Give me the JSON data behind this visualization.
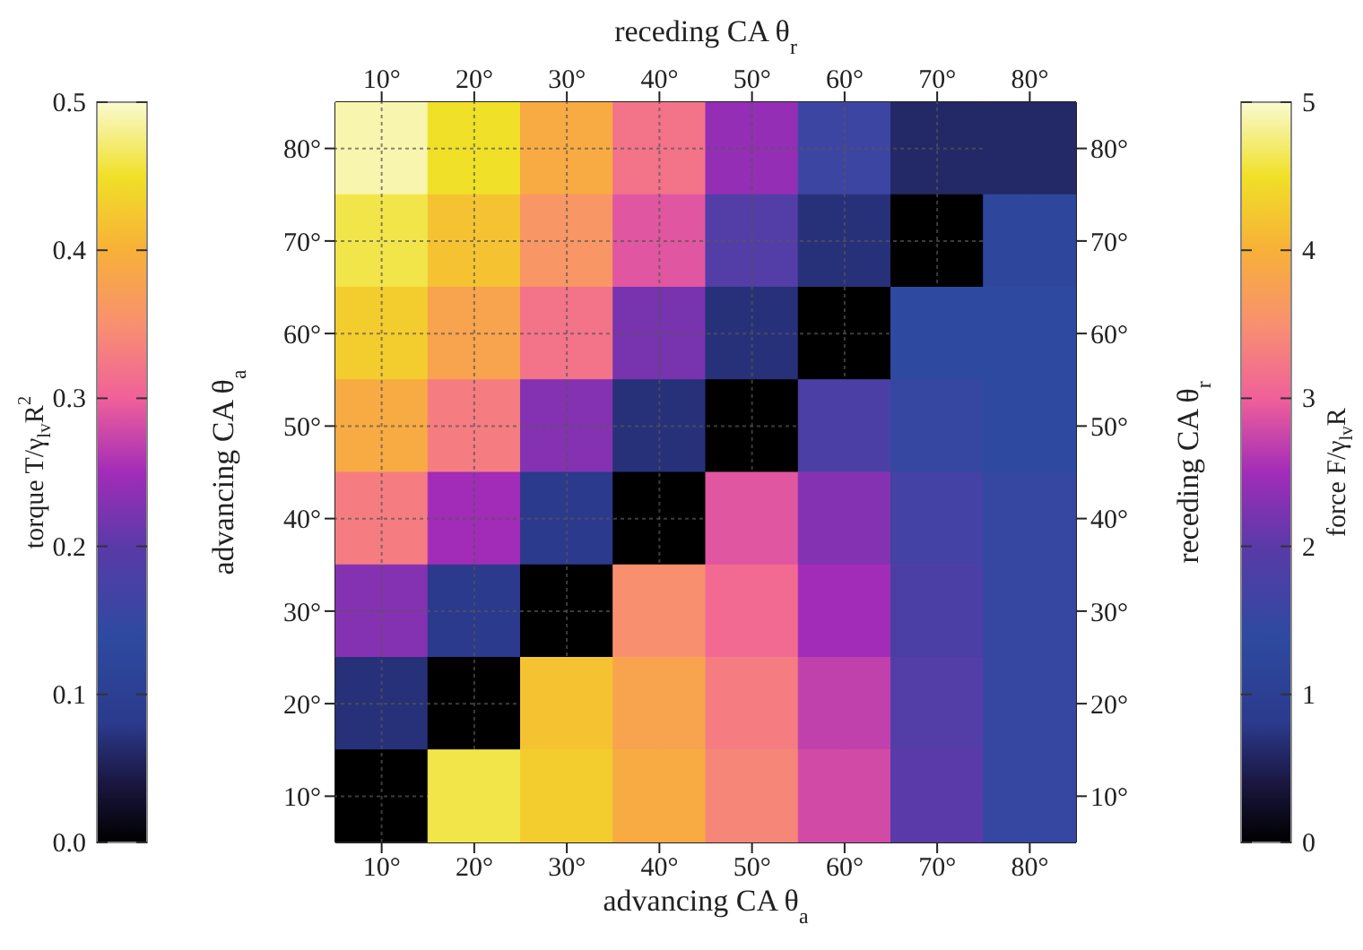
{
  "chart_data": [
    {
      "type": "heatmap",
      "x2label": "receding CA θ$_{r}$",
      "ylabel": "advancing CA θ$_{a}$",
      "clabel": "torque T/γ$_{lv}$R$^{2}$",
      "categories": [
        "10°",
        "20°",
        "30°",
        "40°",
        "50°",
        "60°",
        "70°",
        "80°"
      ],
      "y_categories": [
        "80°",
        "70°",
        "60°",
        "50°",
        "40°",
        "30°",
        "20°",
        "10°"
      ],
      "cells": [
        [
          0.49,
          0.45,
          0.39,
          0.32,
          0.24,
          0.16,
          0.06,
          null
        ],
        [
          0.46,
          0.42,
          0.36,
          0.29,
          0.19,
          0.07,
          0.0,
          null
        ],
        [
          0.43,
          0.38,
          0.32,
          0.22,
          0.07,
          0.0,
          null,
          null
        ],
        [
          0.39,
          0.33,
          0.23,
          0.07,
          0.0,
          null,
          null,
          null
        ],
        [
          0.33,
          0.25,
          0.08,
          0.0,
          null,
          null,
          null,
          null
        ],
        [
          0.23,
          0.08,
          0.0,
          null,
          null,
          null,
          null,
          null
        ],
        [
          0.07,
          0.0,
          null,
          null,
          null,
          null,
          null,
          null
        ],
        [
          0.0,
          null,
          null,
          null,
          null,
          null,
          null,
          null
        ]
      ],
      "clim": [
        0,
        0.5
      ],
      "cticks": [
        {
          "value": 0,
          "label": "0.0"
        },
        0.1,
        0.2,
        0.3,
        0.4,
        0.5
      ],
      "grid": true
    },
    {
      "type": "heatmap",
      "xlabel": "advancing CA θ$_{a}$",
      "y2label": "receding CA θ$_{r}$",
      "clabel": "force F/γ$_{lv}$R",
      "categories": [
        "10°",
        "20°",
        "30°",
        "40°",
        "50°",
        "60°",
        "70°",
        "80°"
      ],
      "y_categories": [
        "80°",
        "70°",
        "60°",
        "50°",
        "40°",
        "30°",
        "20°",
        "10°"
      ],
      "cells": [
        [
          null,
          null,
          null,
          null,
          null,
          null,
          null,
          0.6
        ],
        [
          null,
          null,
          null,
          null,
          null,
          null,
          null,
          1.3
        ],
        [
          null,
          null,
          null,
          null,
          null,
          null,
          1.4,
          1.4
        ],
        [
          null,
          null,
          null,
          null,
          null,
          1.8,
          1.5,
          1.4
        ],
        [
          null,
          null,
          null,
          null,
          2.9,
          2.3,
          1.7,
          1.5
        ],
        [
          null,
          null,
          null,
          3.5,
          3.1,
          2.5,
          1.8,
          1.5
        ],
        [
          null,
          null,
          4.2,
          3.8,
          3.3,
          2.7,
          1.9,
          1.5
        ],
        [
          null,
          4.6,
          4.3,
          3.9,
          3.4,
          2.8,
          2.0,
          1.5
        ]
      ],
      "clim": [
        0,
        5
      ],
      "cticks": [
        0,
        1,
        2,
        3,
        4,
        5
      ],
      "grid": true
    }
  ]
}
